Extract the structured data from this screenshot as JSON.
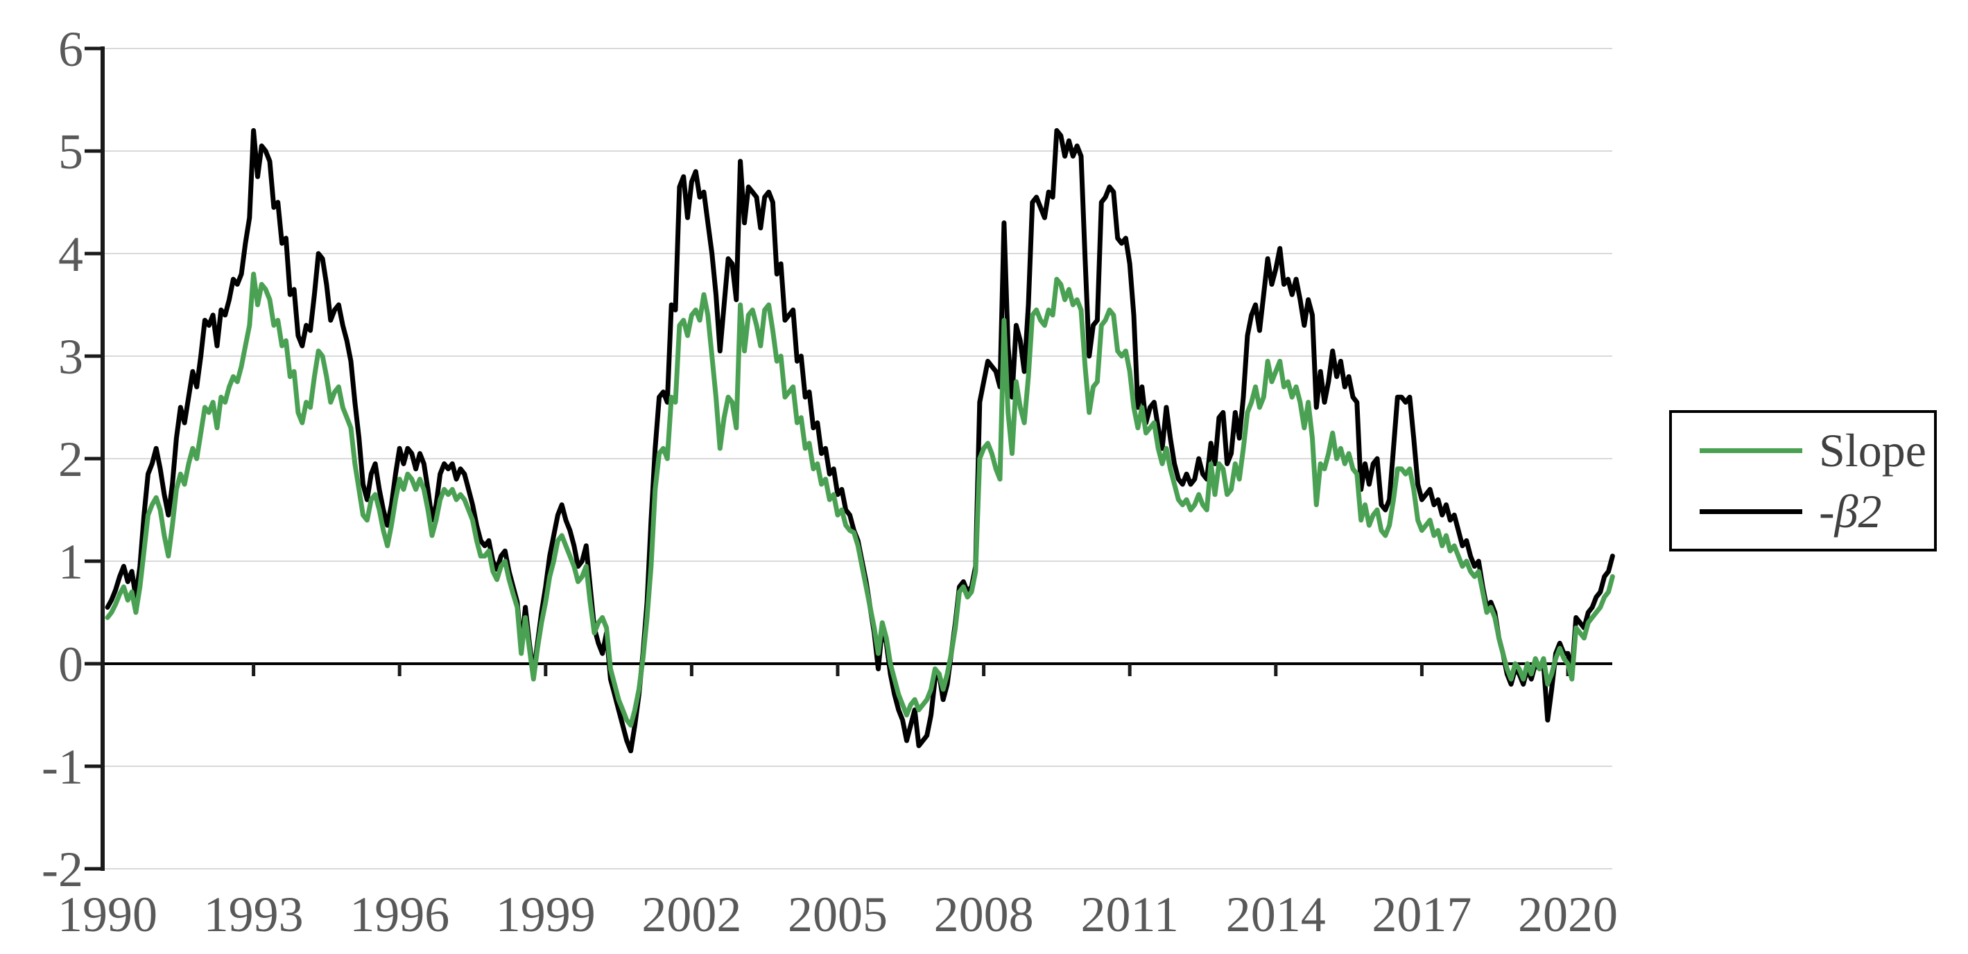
{
  "colors": {
    "slope_green": "#4BA153",
    "beta_black": "#000000",
    "gridline": "#d9d9d9",
    "axis": "#1a1a1a",
    "zero_line": "#000000",
    "tick_label": "#595959",
    "legend_border": "#000000",
    "background": "#ffffff"
  },
  "legend": {
    "entries": [
      {
        "label": "Slope",
        "color": "#4BA153"
      },
      {
        "label": "-β2",
        "color": "#000000"
      }
    ]
  },
  "chart_data": {
    "type": "line",
    "title": "",
    "xlabel": "",
    "ylabel": "",
    "grid": true,
    "legend_position": "right",
    "x_start_year": 1990,
    "x_step_months": 1,
    "x_tick_labels": [
      "1990",
      "1993",
      "1996",
      "1999",
      "2002",
      "2005",
      "2008",
      "2011",
      "2014",
      "2017",
      "2020"
    ],
    "x_tick_years": [
      1990,
      1993,
      1996,
      1999,
      2002,
      2005,
      2008,
      2011,
      2014,
      2017,
      2020
    ],
    "y_tick_labels": [
      "6",
      "5",
      "4",
      "3",
      "2",
      "1",
      "0",
      "-1",
      "-2"
    ],
    "y_tick_values": [
      6,
      5,
      4,
      3,
      2,
      1,
      0,
      -1,
      -2
    ],
    "ylim": [
      -2,
      6
    ],
    "series": [
      {
        "name": "-β2",
        "color": "#000000",
        "values": [
          0.55,
          0.62,
          0.72,
          0.85,
          0.95,
          0.8,
          0.9,
          0.65,
          0.95,
          1.45,
          1.85,
          1.95,
          2.1,
          1.9,
          1.65,
          1.45,
          1.75,
          2.2,
          2.5,
          2.35,
          2.6,
          2.85,
          2.7,
          3.0,
          3.35,
          3.3,
          3.4,
          3.1,
          3.45,
          3.4,
          3.55,
          3.75,
          3.7,
          3.8,
          4.1,
          4.35,
          5.2,
          4.75,
          5.05,
          5.0,
          4.9,
          4.45,
          4.5,
          4.1,
          4.15,
          3.6,
          3.65,
          3.2,
          3.1,
          3.3,
          3.25,
          3.6,
          4.0,
          3.95,
          3.7,
          3.35,
          3.45,
          3.5,
          3.3,
          3.15,
          2.95,
          2.55,
          2.2,
          1.75,
          1.6,
          1.85,
          1.95,
          1.7,
          1.5,
          1.35,
          1.55,
          1.85,
          2.1,
          1.95,
          2.1,
          2.05,
          1.9,
          2.05,
          1.95,
          1.7,
          1.4,
          1.55,
          1.85,
          1.95,
          1.9,
          1.95,
          1.8,
          1.9,
          1.85,
          1.7,
          1.55,
          1.35,
          1.2,
          1.15,
          1.2,
          1.0,
          0.92,
          1.05,
          1.1,
          0.9,
          0.75,
          0.6,
          0.15,
          0.55,
          0.2,
          -0.1,
          0.2,
          0.5,
          0.75,
          1.05,
          1.25,
          1.45,
          1.55,
          1.4,
          1.3,
          1.15,
          0.95,
          1.0,
          1.15,
          0.75,
          0.35,
          0.2,
          0.1,
          0.3,
          -0.15,
          -0.3,
          -0.45,
          -0.6,
          -0.75,
          -0.85,
          -0.6,
          -0.3,
          0.1,
          0.6,
          1.4,
          2.1,
          2.6,
          2.65,
          2.55,
          3.5,
          3.45,
          4.65,
          4.75,
          4.35,
          4.7,
          4.8,
          4.55,
          4.6,
          4.3,
          4.0,
          3.6,
          3.05,
          3.5,
          3.95,
          3.9,
          3.55,
          4.9,
          4.3,
          4.65,
          4.6,
          4.55,
          4.25,
          4.55,
          4.6,
          4.5,
          3.8,
          3.9,
          3.35,
          3.4,
          3.45,
          2.95,
          3.0,
          2.6,
          2.65,
          2.3,
          2.35,
          2.05,
          2.1,
          1.85,
          1.9,
          1.65,
          1.7,
          1.5,
          1.45,
          1.3,
          1.2,
          1.0,
          0.8,
          0.55,
          0.3,
          -0.05,
          0.35,
          0.2,
          -0.1,
          -0.3,
          -0.45,
          -0.55,
          -0.75,
          -0.6,
          -0.45,
          -0.8,
          -0.75,
          -0.7,
          -0.5,
          -0.15,
          -0.1,
          -0.35,
          -0.2,
          0.1,
          0.4,
          0.75,
          0.8,
          0.7,
          0.75,
          0.95,
          2.55,
          2.75,
          2.95,
          2.9,
          2.85,
          2.7,
          4.3,
          3.1,
          2.6,
          3.3,
          3.15,
          2.85,
          3.5,
          4.5,
          4.55,
          4.45,
          4.35,
          4.6,
          4.55,
          5.2,
          5.15,
          4.95,
          5.1,
          4.95,
          5.05,
          4.95,
          3.95,
          3.0,
          3.3,
          3.35,
          4.5,
          4.55,
          4.65,
          4.6,
          4.15,
          4.1,
          4.15,
          3.9,
          3.4,
          2.5,
          2.7,
          2.35,
          2.5,
          2.55,
          2.3,
          2.1,
          2.5,
          2.2,
          1.95,
          1.8,
          1.75,
          1.85,
          1.75,
          1.8,
          2.0,
          1.85,
          1.8,
          2.15,
          1.95,
          2.4,
          2.45,
          1.95,
          2.05,
          2.45,
          2.2,
          2.6,
          3.2,
          3.4,
          3.5,
          3.25,
          3.6,
          3.95,
          3.7,
          3.85,
          4.05,
          3.7,
          3.75,
          3.6,
          3.75,
          3.55,
          3.3,
          3.55,
          3.4,
          2.5,
          2.85,
          2.55,
          2.75,
          3.05,
          2.8,
          2.95,
          2.7,
          2.8,
          2.6,
          2.55,
          1.7,
          1.95,
          1.75,
          1.95,
          2.0,
          1.55,
          1.5,
          1.6,
          2.1,
          2.6,
          2.6,
          2.55,
          2.6,
          2.2,
          1.75,
          1.6,
          1.65,
          1.7,
          1.55,
          1.6,
          1.45,
          1.55,
          1.4,
          1.45,
          1.3,
          1.15,
          1.2,
          1.05,
          0.95,
          1.0,
          0.75,
          0.55,
          0.6,
          0.5,
          0.25,
          0.1,
          -0.1,
          -0.2,
          -0.05,
          -0.1,
          -0.2,
          -0.05,
          -0.15,
          0.0,
          -0.05,
          0.0,
          -0.55,
          -0.25,
          0.1,
          0.2,
          0.1,
          0.1,
          -0.1,
          0.45,
          0.4,
          0.35,
          0.5,
          0.55,
          0.65,
          0.7,
          0.85,
          0.9,
          1.05
        ]
      },
      {
        "name": "Slope",
        "color": "#4BA153",
        "values": [
          0.45,
          0.5,
          0.58,
          0.68,
          0.75,
          0.62,
          0.7,
          0.5,
          0.75,
          1.1,
          1.45,
          1.55,
          1.62,
          1.5,
          1.25,
          1.05,
          1.35,
          1.7,
          1.85,
          1.75,
          1.95,
          2.1,
          2.0,
          2.25,
          2.5,
          2.45,
          2.55,
          2.3,
          2.6,
          2.55,
          2.7,
          2.8,
          2.75,
          2.9,
          3.1,
          3.3,
          3.8,
          3.5,
          3.7,
          3.65,
          3.55,
          3.3,
          3.35,
          3.1,
          3.15,
          2.8,
          2.85,
          2.45,
          2.35,
          2.55,
          2.5,
          2.8,
          3.05,
          3.0,
          2.8,
          2.55,
          2.65,
          2.7,
          2.5,
          2.4,
          2.3,
          1.95,
          1.7,
          1.45,
          1.4,
          1.6,
          1.65,
          1.5,
          1.3,
          1.15,
          1.35,
          1.6,
          1.8,
          1.7,
          1.85,
          1.8,
          1.7,
          1.8,
          1.7,
          1.5,
          1.25,
          1.4,
          1.6,
          1.7,
          1.65,
          1.7,
          1.6,
          1.65,
          1.6,
          1.5,
          1.4,
          1.2,
          1.05,
          1.05,
          1.1,
          0.9,
          0.82,
          0.95,
          1.0,
          0.82,
          0.68,
          0.55,
          0.1,
          0.45,
          0.15,
          -0.15,
          0.15,
          0.4,
          0.6,
          0.85,
          1.0,
          1.2,
          1.25,
          1.15,
          1.05,
          0.95,
          0.8,
          0.85,
          0.95,
          0.6,
          0.3,
          0.4,
          0.45,
          0.35,
          -0.05,
          -0.2,
          -0.35,
          -0.45,
          -0.55,
          -0.6,
          -0.45,
          -0.25,
          0.05,
          0.45,
          0.95,
          1.7,
          2.05,
          2.1,
          2.0,
          2.6,
          2.55,
          3.3,
          3.35,
          3.2,
          3.4,
          3.45,
          3.35,
          3.6,
          3.4,
          3.0,
          2.6,
          2.1,
          2.4,
          2.6,
          2.55,
          2.3,
          3.5,
          3.05,
          3.4,
          3.45,
          3.3,
          3.1,
          3.45,
          3.5,
          3.25,
          2.95,
          3.0,
          2.6,
          2.65,
          2.7,
          2.35,
          2.4,
          2.1,
          2.15,
          1.9,
          1.95,
          1.75,
          1.8,
          1.6,
          1.65,
          1.45,
          1.5,
          1.35,
          1.3,
          1.28,
          1.15,
          0.95,
          0.75,
          0.55,
          0.35,
          0.1,
          0.4,
          0.25,
          0.0,
          -0.15,
          -0.3,
          -0.4,
          -0.5,
          -0.4,
          -0.35,
          -0.45,
          -0.4,
          -0.35,
          -0.25,
          -0.05,
          -0.1,
          -0.25,
          -0.1,
          0.1,
          0.35,
          0.7,
          0.75,
          0.65,
          0.7,
          0.9,
          2.0,
          2.1,
          2.15,
          2.05,
          1.9,
          1.8,
          3.35,
          2.45,
          2.05,
          2.75,
          2.5,
          2.35,
          2.8,
          3.4,
          3.45,
          3.35,
          3.3,
          3.45,
          3.4,
          3.75,
          3.7,
          3.55,
          3.65,
          3.5,
          3.55,
          3.45,
          2.9,
          2.45,
          2.7,
          2.75,
          3.3,
          3.35,
          3.45,
          3.4,
          3.05,
          3.0,
          3.05,
          2.85,
          2.5,
          2.3,
          2.5,
          2.25,
          2.3,
          2.35,
          2.1,
          1.95,
          2.1,
          1.9,
          1.75,
          1.6,
          1.55,
          1.6,
          1.5,
          1.55,
          1.65,
          1.55,
          1.5,
          1.95,
          1.65,
          1.95,
          1.9,
          1.65,
          1.7,
          1.95,
          1.8,
          2.1,
          2.45,
          2.55,
          2.7,
          2.5,
          2.6,
          2.95,
          2.75,
          2.85,
          2.95,
          2.7,
          2.75,
          2.6,
          2.7,
          2.55,
          2.3,
          2.55,
          2.2,
          1.55,
          1.95,
          1.9,
          2.05,
          2.25,
          2.0,
          2.1,
          1.95,
          2.05,
          1.9,
          1.85,
          1.4,
          1.55,
          1.35,
          1.45,
          1.5,
          1.3,
          1.25,
          1.35,
          1.6,
          1.9,
          1.9,
          1.85,
          1.9,
          1.7,
          1.4,
          1.3,
          1.35,
          1.4,
          1.25,
          1.3,
          1.15,
          1.25,
          1.1,
          1.15,
          1.05,
          0.95,
          1.0,
          0.9,
          0.85,
          0.9,
          0.7,
          0.5,
          0.55,
          0.45,
          0.25,
          0.1,
          -0.05,
          -0.15,
          0.0,
          -0.05,
          -0.15,
          0.0,
          -0.1,
          0.05,
          -0.05,
          0.05,
          -0.2,
          -0.1,
          0.05,
          0.15,
          0.05,
          0.0,
          -0.15,
          0.35,
          0.3,
          0.25,
          0.4,
          0.45,
          0.5,
          0.55,
          0.65,
          0.7,
          0.85
        ]
      }
    ]
  }
}
